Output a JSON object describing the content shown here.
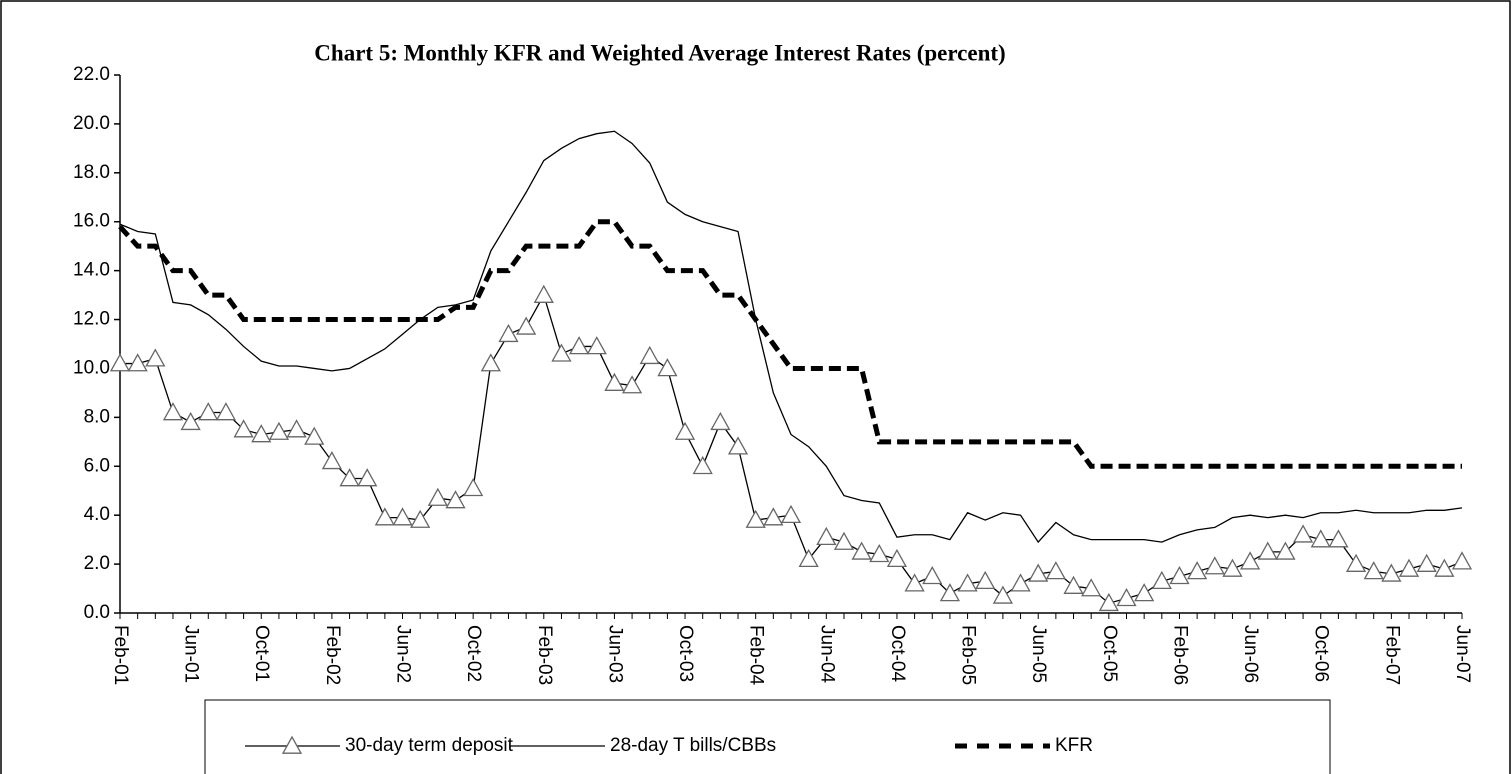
{
  "chart_data": {
    "type": "line",
    "title": "Chart 5: Monthly KFR and Weighted Average Interest Rates (percent)",
    "categories": [
      "Feb-01",
      null,
      null,
      null,
      "Jun-01",
      null,
      null,
      null,
      "Oct-01",
      null,
      null,
      null,
      "Feb-02",
      null,
      null,
      null,
      "Jun-02",
      null,
      null,
      null,
      "Oct-02",
      null,
      null,
      null,
      "Feb-03",
      null,
      null,
      null,
      "Jun-03",
      null,
      null,
      null,
      "Oct-03",
      null,
      null,
      null,
      "Feb-04",
      null,
      null,
      null,
      "Jun-04",
      null,
      null,
      null,
      "Oct-04",
      null,
      null,
      null,
      "Feb-05",
      null,
      null,
      null,
      "Jun-05",
      null,
      null,
      null,
      "Oct-05",
      null,
      null,
      null,
      "Feb-06",
      null,
      null,
      null,
      "Jun-06",
      null,
      null,
      null,
      "Oct-06",
      null,
      null,
      null,
      "Feb-07",
      null,
      null,
      null,
      "Jun-07"
    ],
    "series": [
      {
        "name": "30-day term deposit",
        "color": "#000000",
        "marker": "triangle",
        "values": [
          10.2,
          10.2,
          10.4,
          8.2,
          7.8,
          8.2,
          8.2,
          7.5,
          7.3,
          7.4,
          7.5,
          7.2,
          6.2,
          5.5,
          5.5,
          3.9,
          3.9,
          3.8,
          4.7,
          4.6,
          5.1,
          10.2,
          11.4,
          11.7,
          13.0,
          10.6,
          10.9,
          10.9,
          9.4,
          9.3,
          10.5,
          10.0,
          7.4,
          6.0,
          7.8,
          6.8,
          3.8,
          3.9,
          4.0,
          2.2,
          3.1,
          2.9,
          2.5,
          2.4,
          2.2,
          1.2,
          1.5,
          0.8,
          1.2,
          1.3,
          0.7,
          1.2,
          1.6,
          1.7,
          1.1,
          1.0,
          0.4,
          0.6,
          0.8,
          1.3,
          1.5,
          1.7,
          1.9,
          1.8,
          2.1,
          2.5,
          2.5,
          3.2,
          3.0,
          3.0,
          2.0,
          1.7,
          1.6,
          1.8,
          2.0,
          1.8,
          2.1
        ]
      },
      {
        "name": "28-day T bills/CBBs",
        "color": "#000000",
        "marker": "none",
        "values": [
          15.9,
          15.6,
          15.5,
          12.7,
          12.6,
          12.2,
          11.6,
          10.9,
          10.3,
          10.1,
          10.1,
          10.0,
          9.9,
          10.0,
          10.4,
          10.8,
          11.4,
          12.0,
          12.5,
          12.6,
          12.8,
          14.8,
          16.0,
          17.2,
          18.5,
          19.0,
          19.4,
          19.6,
          19.7,
          19.2,
          18.4,
          16.8,
          16.3,
          16.0,
          15.8,
          15.6,
          12.0,
          9.0,
          7.3,
          6.8,
          6.0,
          4.8,
          4.6,
          4.5,
          3.1,
          3.2,
          3.2,
          3.0,
          4.1,
          3.8,
          4.1,
          4.0,
          2.9,
          3.7,
          3.2,
          3.0,
          3.0,
          3.0,
          3.0,
          2.9,
          3.2,
          3.4,
          3.5,
          3.9,
          4.0,
          3.9,
          4.0,
          3.9,
          4.1,
          4.1,
          4.2,
          4.1,
          4.1,
          4.1,
          4.2,
          4.2,
          4.3
        ]
      },
      {
        "name": "KFR",
        "color": "#000000",
        "marker": "none",
        "dashed": true,
        "values": [
          15.8,
          15.0,
          15.0,
          14.0,
          14.0,
          13.0,
          13.0,
          12.0,
          12.0,
          12.0,
          12.0,
          12.0,
          12.0,
          12.0,
          12.0,
          12.0,
          12.0,
          12.0,
          12.0,
          12.5,
          12.5,
          14.0,
          14.0,
          15.0,
          15.0,
          15.0,
          15.0,
          16.0,
          16.0,
          15.0,
          15.0,
          14.0,
          14.0,
          14.0,
          13.0,
          13.0,
          12.0,
          11.0,
          10.0,
          10.0,
          10.0,
          10.0,
          10.0,
          7.0,
          7.0,
          7.0,
          7.0,
          7.0,
          7.0,
          7.0,
          7.0,
          7.0,
          7.0,
          7.0,
          7.0,
          6.0,
          6.0,
          6.0,
          6.0,
          6.0,
          6.0,
          6.0,
          6.0,
          6.0,
          6.0,
          6.0,
          6.0,
          6.0,
          6.0,
          6.0,
          6.0,
          6.0,
          6.0,
          6.0,
          6.0,
          6.0,
          6.0
        ]
      }
    ],
    "ylim": [
      0,
      22
    ],
    "yticks": [
      {
        "value": 0,
        "label": "0.0"
      },
      {
        "value": 2,
        "label": "2.0"
      },
      {
        "value": 4,
        "label": "4.0"
      },
      {
        "value": 6,
        "label": "6.0"
      },
      {
        "value": 8,
        "label": "8.0"
      },
      {
        "value": 10,
        "label": "10.0"
      },
      {
        "value": 12,
        "label": "12.0"
      },
      {
        "value": 14,
        "label": "14.0"
      },
      {
        "value": 16,
        "label": "16.0"
      },
      {
        "value": 18,
        "label": "18.0"
      },
      {
        "value": 20,
        "label": "20.0"
      },
      {
        "value": 22,
        "label": "22.0"
      }
    ],
    "grid": false,
    "legend": "bottom"
  }
}
